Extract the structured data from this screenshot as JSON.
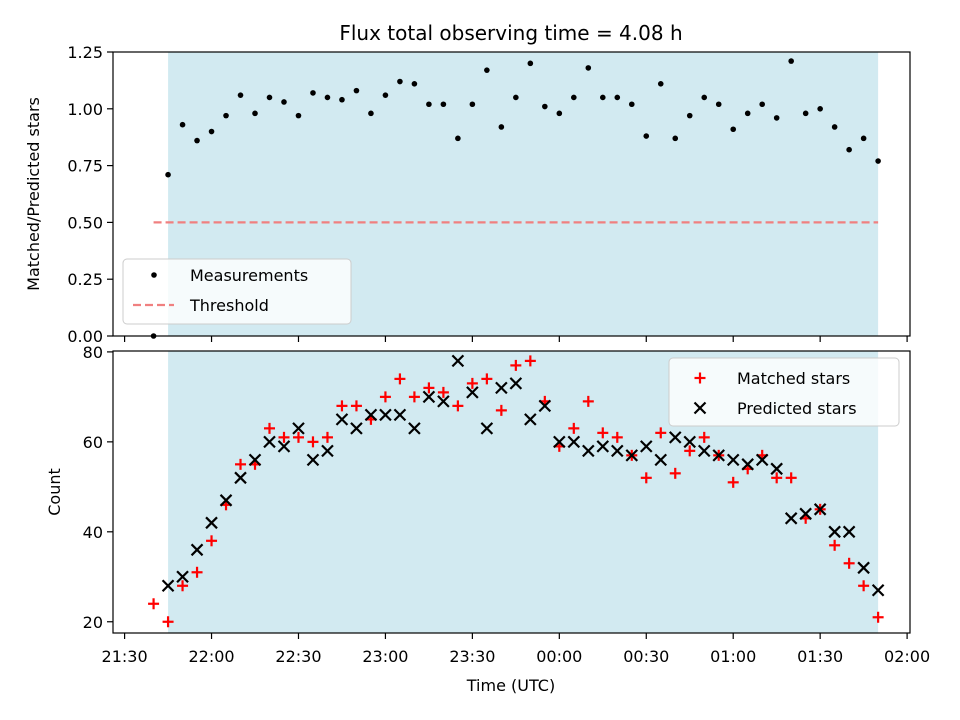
{
  "colors": {
    "observing_window": "#add8e6",
    "measurement": "#000000",
    "threshold": "#f08080",
    "matched": "#ff0000",
    "predicted": "#000000"
  },
  "chart_data": [
    {
      "type": "scatter",
      "title": "Flux total observing time = 4.08 h",
      "xlabel": "",
      "ylabel": "Matched/Predicted stars",
      "xlim": [
        "21:26",
        "02:01"
      ],
      "ylim": [
        0,
        1.25
      ],
      "y_ticks": [
        "0.00",
        "0.25",
        "0.50",
        "0.75",
        "1.00",
        "1.25"
      ],
      "x_tick_values": [
        "21:30",
        "22:00",
        "22:30",
        "23:00",
        "23:30",
        "00:00",
        "00:30",
        "01:00",
        "01:30",
        "02:00"
      ],
      "observing_window": [
        "21:45",
        "01:50"
      ],
      "threshold": {
        "y": 0.5,
        "x_range": [
          "21:40",
          "01:50"
        ]
      },
      "legend": {
        "position": "lower-left",
        "entries": [
          "Measurements",
          "Threshold"
        ]
      },
      "grid": false,
      "series": [
        {
          "name": "Measurements",
          "marker": "dot",
          "x": [
            "21:40",
            "21:45",
            "21:50",
            "21:55",
            "22:00",
            "22:05",
            "22:10",
            "22:15",
            "22:20",
            "22:25",
            "22:30",
            "22:35",
            "22:40",
            "22:45",
            "22:50",
            "22:55",
            "23:00",
            "23:05",
            "23:10",
            "23:15",
            "23:20",
            "23:25",
            "23:30",
            "23:35",
            "23:40",
            "23:45",
            "23:50",
            "23:55",
            "00:00",
            "00:05",
            "00:10",
            "00:15",
            "00:20",
            "00:25",
            "00:30",
            "00:35",
            "00:40",
            "00:45",
            "00:50",
            "00:55",
            "01:00",
            "01:05",
            "01:10",
            "01:15",
            "01:20",
            "01:25",
            "01:30",
            "01:35",
            "01:40",
            "01:45",
            "01:50"
          ],
          "y": [
            0.0,
            0.71,
            0.93,
            0.86,
            0.9,
            0.97,
            1.06,
            0.98,
            1.05,
            1.03,
            0.97,
            1.07,
            1.05,
            1.04,
            1.08,
            0.98,
            1.06,
            1.12,
            1.11,
            1.02,
            1.02,
            0.87,
            1.02,
            1.17,
            0.92,
            1.05,
            1.2,
            1.01,
            0.98,
            1.05,
            1.18,
            1.05,
            1.05,
            1.02,
            0.88,
            1.11,
            0.87,
            0.97,
            1.05,
            1.02,
            0.91,
            0.98,
            1.02,
            0.96,
            1.21,
            0.98,
            1.0,
            0.92,
            0.82,
            0.87,
            0.77
          ]
        }
      ]
    },
    {
      "type": "scatter",
      "title": "",
      "xlabel": "Time (UTC)",
      "ylabel": "Count",
      "xlim": [
        "21:26",
        "02:01"
      ],
      "ylim": [
        17.5,
        80.2
      ],
      "y_ticks": [
        "20",
        "40",
        "60",
        "80"
      ],
      "x_ticks": [
        "21:30",
        "22:00",
        "22:30",
        "23:00",
        "23:30",
        "00:00",
        "00:30",
        "01:00",
        "01:30",
        "02:00"
      ],
      "observing_window": [
        "21:45",
        "01:50"
      ],
      "legend": {
        "position": "top-right",
        "entries": [
          "Matched stars",
          "Predicted stars"
        ]
      },
      "grid": false,
      "series": [
        {
          "name": "Matched stars",
          "marker": "plus",
          "x": [
            "21:40",
            "21:45",
            "21:50",
            "21:55",
            "22:00",
            "22:05",
            "22:10",
            "22:15",
            "22:20",
            "22:25",
            "22:30",
            "22:35",
            "22:40",
            "22:45",
            "22:50",
            "22:55",
            "23:00",
            "23:05",
            "23:10",
            "23:15",
            "23:20",
            "23:25",
            "23:30",
            "23:35",
            "23:40",
            "23:45",
            "23:50",
            "23:55",
            "00:00",
            "00:05",
            "00:10",
            "00:15",
            "00:20",
            "00:25",
            "00:30",
            "00:35",
            "00:40",
            "00:45",
            "00:50",
            "00:55",
            "01:00",
            "01:05",
            "01:10",
            "01:15",
            "01:20",
            "01:25",
            "01:30",
            "01:35",
            "01:40",
            "01:45",
            "01:50"
          ],
          "y": [
            24,
            20,
            28,
            31,
            38,
            46,
            55,
            55,
            63,
            61,
            61,
            60,
            61,
            68,
            68,
            65,
            70,
            74,
            70,
            72,
            71,
            68,
            73,
            74,
            67,
            77,
            78,
            69,
            59,
            63,
            69,
            62,
            61,
            57,
            52,
            62,
            53,
            58,
            61,
            57,
            51,
            54,
            57,
            52,
            52,
            43,
            45,
            37,
            33,
            28,
            21
          ]
        },
        {
          "name": "Predicted stars",
          "marker": "x",
          "x": [
            "21:45",
            "21:50",
            "21:55",
            "22:00",
            "22:05",
            "22:10",
            "22:15",
            "22:20",
            "22:25",
            "22:30",
            "22:35",
            "22:40",
            "22:45",
            "22:50",
            "22:55",
            "23:00",
            "23:05",
            "23:10",
            "23:15",
            "23:20",
            "23:25",
            "23:30",
            "23:35",
            "23:40",
            "23:45",
            "23:50",
            "23:55",
            "00:00",
            "00:05",
            "00:10",
            "00:15",
            "00:20",
            "00:25",
            "00:30",
            "00:35",
            "00:40",
            "00:45",
            "00:50",
            "00:55",
            "01:00",
            "01:05",
            "01:10",
            "01:15",
            "01:20",
            "01:25",
            "01:30",
            "01:35",
            "01:40",
            "01:45",
            "01:50"
          ],
          "y": [
            28,
            30,
            36,
            42,
            47,
            52,
            56,
            60,
            59,
            63,
            56,
            58,
            65,
            63,
            66,
            66,
            66,
            63,
            70,
            69,
            78,
            71,
            63,
            72,
            73,
            65,
            68,
            60,
            60,
            58,
            59,
            58,
            57,
            59,
            56,
            61,
            60,
            58,
            57,
            56,
            55,
            56,
            54,
            43,
            44,
            45,
            40,
            40,
            32,
            27
          ]
        }
      ]
    }
  ]
}
